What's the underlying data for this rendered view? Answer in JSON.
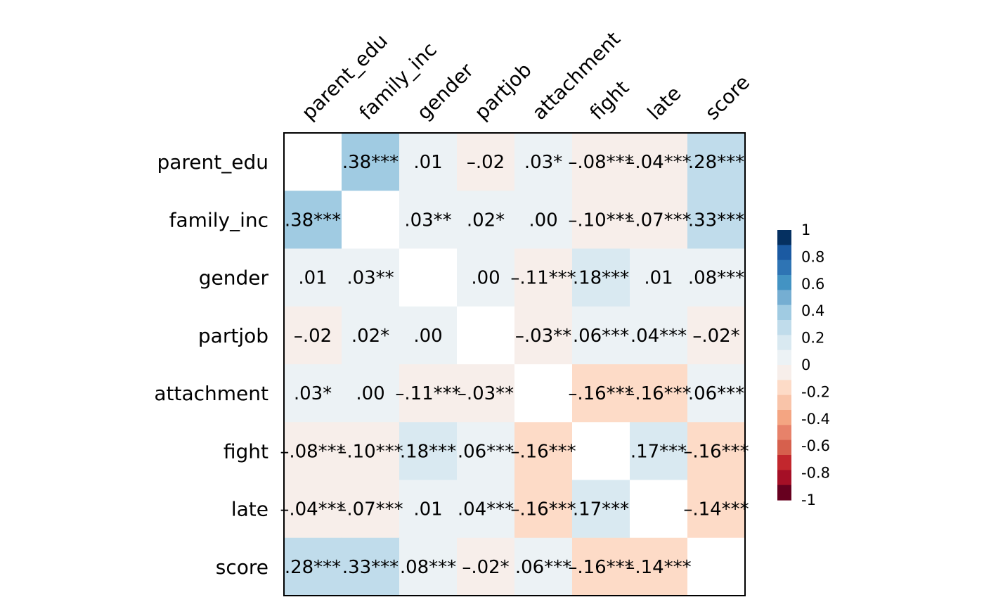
{
  "chart_data": {
    "type": "heatmap",
    "title": "",
    "variables": [
      "parent_edu",
      "family_inc",
      "gender",
      "partjob",
      "attachment",
      "fight",
      "late",
      "score"
    ],
    "values": [
      [
        null,
        0.38,
        0.01,
        -0.02,
        0.03,
        -0.08,
        -0.04,
        0.28
      ],
      [
        0.38,
        null,
        0.03,
        0.02,
        0.0,
        -0.1,
        -0.07,
        0.33
      ],
      [
        0.01,
        0.03,
        null,
        0.0,
        -0.11,
        0.18,
        0.01,
        0.08
      ],
      [
        -0.02,
        0.02,
        0.0,
        null,
        -0.03,
        0.06,
        0.04,
        -0.02
      ],
      [
        0.03,
        0.0,
        -0.11,
        -0.03,
        null,
        -0.16,
        -0.16,
        0.06
      ],
      [
        -0.08,
        -0.1,
        0.18,
        0.06,
        -0.16,
        null,
        0.17,
        -0.16
      ],
      [
        -0.04,
        -0.07,
        0.01,
        0.04,
        -0.16,
        0.17,
        null,
        -0.14
      ],
      [
        0.28,
        0.33,
        0.08,
        -0.02,
        0.06,
        -0.16,
        -0.14,
        null
      ]
    ],
    "cell_labels": [
      [
        "",
        ".38***",
        ".01",
        "–.02",
        ".03*",
        "–.08***",
        "–.04***",
        ".28***"
      ],
      [
        ".38***",
        "",
        ".03**",
        ".02*",
        ".00",
        "–.10***",
        "–.07***",
        ".33***"
      ],
      [
        ".01",
        ".03**",
        "",
        ".00",
        "–.11***",
        ".18***",
        ".01",
        ".08***"
      ],
      [
        "–.02",
        ".02*",
        ".00",
        "",
        "–.03**",
        ".06***",
        ".04***",
        "–.02*"
      ],
      [
        ".03*",
        ".00",
        "–.11***",
        "–.03**",
        "",
        "–.16***",
        "–.16***",
        ".06***"
      ],
      [
        "–.08***",
        "–.10***",
        ".18***",
        ".06***",
        "–.16***",
        "",
        ".17***",
        "–.16***"
      ],
      [
        "–.04***",
        "–.07***",
        ".01",
        ".04***",
        "–.16***",
        ".17***",
        "",
        "–.14***"
      ],
      [
        ".28***",
        ".33***",
        ".08***",
        "–.02*",
        ".06***",
        "–.16***",
        "–.14***",
        ""
      ]
    ],
    "color_scale": {
      "range": [
        -1,
        1
      ],
      "colors": [
        "#67001F",
        "#A50F26",
        "#C2272D",
        "#D6604D",
        "#E7826A",
        "#F4A582",
        "#F9C4A9",
        "#FDDBC7",
        "#F7EEEA",
        "#ECF2F5",
        "#D9E9F1",
        "#C0DCEB",
        "#A0CBE2",
        "#75AED2",
        "#4393C3",
        "#2E74B4",
        "#1B5AA2",
        "#053061"
      ],
      "tick_labels": [
        "1",
        "0.8",
        "0.6",
        "0.4",
        "0.2",
        "0",
        "-0.2",
        "-0.4",
        "-0.6",
        "-0.8",
        "-1"
      ]
    },
    "legend": "right"
  }
}
